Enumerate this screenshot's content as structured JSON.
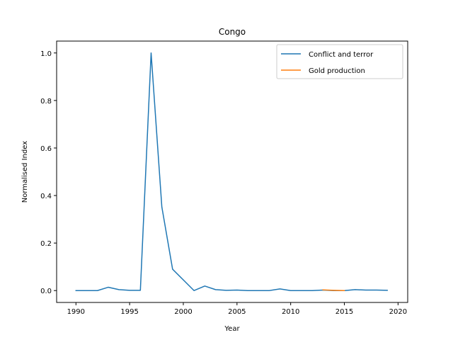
{
  "chart_data": {
    "type": "line",
    "title": "Congo",
    "xlabel": "Year",
    "ylabel": "Normalised Index",
    "xlim": [
      1988.2,
      2020.9
    ],
    "ylim": [
      -0.05,
      1.05
    ],
    "xticks": [
      1990,
      1995,
      2000,
      2005,
      2010,
      2015,
      2020
    ],
    "yticks": [
      0.0,
      0.2,
      0.4,
      0.6,
      0.8,
      1.0
    ],
    "xtick_labels": [
      "1990",
      "1995",
      "2000",
      "2005",
      "2010",
      "2015",
      "2020"
    ],
    "ytick_labels": [
      "0.0",
      "0.2",
      "0.4",
      "0.6",
      "0.8",
      "1.0"
    ],
    "grid": false,
    "legend_position": "top-right",
    "series": [
      {
        "name": "Conflict and terror",
        "color": "#1f77b4",
        "x": [
          1990,
          1991,
          1992,
          1993,
          1994,
          1995,
          1996,
          1997,
          1998,
          1999,
          2000,
          2001,
          2002,
          2003,
          2004,
          2005,
          2006,
          2007,
          2008,
          2009,
          2010,
          2011,
          2012,
          2013,
          2014,
          2015,
          2016,
          2017,
          2018,
          2019
        ],
        "y": [
          0.0,
          0.0,
          0.0,
          0.014,
          0.004,
          0.001,
          0.001,
          1.0,
          0.352,
          0.09,
          0.045,
          0.0,
          0.019,
          0.004,
          0.001,
          0.002,
          0.0,
          0.0,
          0.0,
          0.007,
          0.0,
          0.0,
          0.0,
          0.002,
          0.0,
          0.0,
          0.004,
          0.002,
          0.002,
          0.001
        ]
      },
      {
        "name": "Gold production",
        "color": "#ff7f0e",
        "x": [
          2013,
          2014,
          2015
        ],
        "y": [
          0.003,
          0.001,
          0.0
        ]
      }
    ]
  }
}
